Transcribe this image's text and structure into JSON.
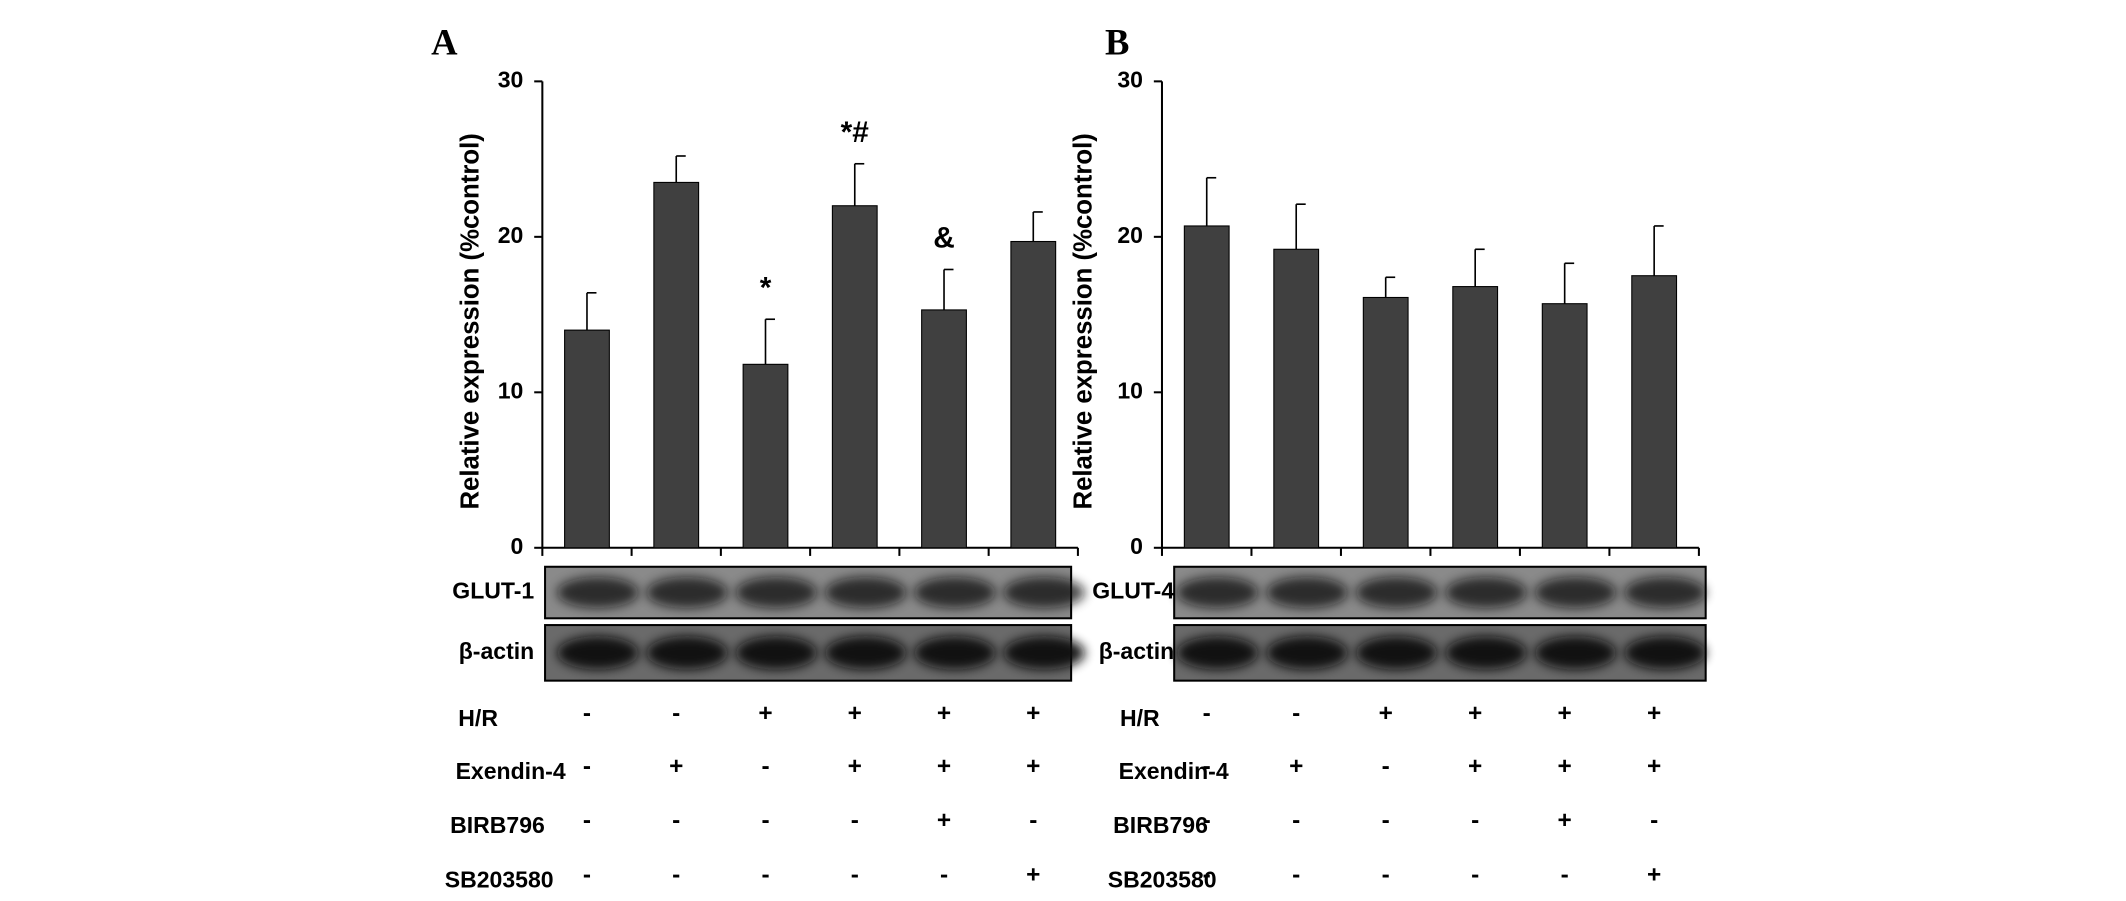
{
  "chart_data": [
    {
      "type": "bar",
      "panel": "A",
      "y_label": "Relative expression (%control)",
      "values": [
        14.0,
        23.5,
        11.8,
        22.0,
        15.3,
        19.7
      ],
      "errors": [
        2.4,
        1.7,
        2.9,
        2.7,
        2.6,
        1.9
      ],
      "annotations": [
        null,
        null,
        "*",
        "*#",
        "&",
        null
      ],
      "ylim": [
        0,
        30
      ],
      "yticks": [
        0,
        10,
        20,
        30
      ],
      "color": "#404040",
      "blot_labels": [
        "GLUT-1",
        "β-actin"
      ],
      "treatments": [
        {
          "name": "H/R",
          "signs": [
            "-",
            "-",
            "+",
            "+",
            "+",
            "+"
          ]
        },
        {
          "name": "Exendin-4",
          "signs": [
            "-",
            "+",
            "-",
            "+",
            "+",
            "+"
          ]
        },
        {
          "name": "BIRB796",
          "signs": [
            "-",
            "-",
            "-",
            "-",
            "+",
            "-"
          ]
        },
        {
          "name": "SB203580",
          "signs": [
            "-",
            "-",
            "-",
            "-",
            "-",
            "+"
          ]
        }
      ]
    },
    {
      "type": "bar",
      "panel": "B",
      "y_label": "Relative expression (%control)",
      "values": [
        20.7,
        19.2,
        16.1,
        16.8,
        15.7,
        17.5
      ],
      "errors": [
        3.1,
        2.9,
        1.3,
        2.4,
        2.6,
        3.2
      ],
      "ylim": [
        0,
        30
      ],
      "yticks": [
        0,
        10,
        20,
        30
      ],
      "color": "#404040",
      "blot_labels": [
        "GLUT-4",
        "β-actin"
      ],
      "treatments": [
        {
          "name": "H/R",
          "signs": [
            "-",
            "-",
            "+",
            "+",
            "+",
            "+"
          ]
        },
        {
          "name": "Exendin-4",
          "signs": [
            "-",
            "+",
            "-",
            "+",
            "+",
            "+"
          ]
        },
        {
          "name": "BIRB796",
          "signs": [
            "-",
            "-",
            "-",
            "-",
            "+",
            "-"
          ]
        },
        {
          "name": "SB203580",
          "signs": [
            "-",
            "-",
            "-",
            "-",
            "-",
            "+"
          ]
        }
      ]
    }
  ]
}
